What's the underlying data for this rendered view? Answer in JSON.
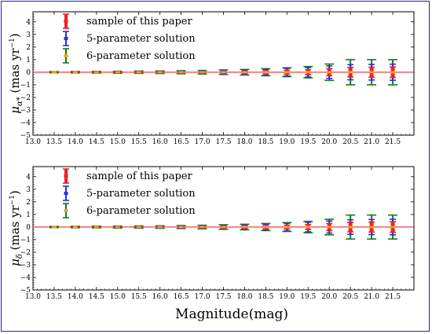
{
  "figure": {
    "xlabel": "Magnitude(mag)",
    "frame_color": "#2020d0"
  },
  "chart_data": [
    {
      "type": "errorbar",
      "ylabel": "μα* (mas yr⁻¹)",
      "ylabel_parts": {
        "symbol": "μ",
        "subscript": "α*",
        "unit": "(mas yr",
        "exponent": "−1",
        "close": ")"
      },
      "xlim": [
        13.0,
        22.0
      ],
      "ylim": [
        -5,
        4.8
      ],
      "x_ticks": [
        13.0,
        13.5,
        14.0,
        14.5,
        15.0,
        15.5,
        16.0,
        16.5,
        17.0,
        17.5,
        18.0,
        18.5,
        19.0,
        19.5,
        20.0,
        20.5,
        21.0,
        21.5
      ],
      "x_tick_labels": [
        "13.0",
        "13.5",
        "14.0",
        "14.5",
        "15.0",
        "15.5",
        "16.0",
        "16.5",
        "17.0",
        "17.5",
        "18.0",
        "18.5",
        "19.0",
        "19.5",
        "20.0",
        "20.5",
        "21.0",
        "21.5"
      ],
      "y_ticks": [
        -5,
        -4,
        -3,
        -2,
        -1,
        0,
        1,
        2,
        3,
        4
      ],
      "y_tick_labels": [
        "−5",
        "−4",
        "−3",
        "−2",
        "−1",
        "0",
        "1",
        "2",
        "3",
        "4"
      ],
      "reference_line": {
        "y": 0,
        "color": "#e8413a"
      },
      "legend_position": "top-left",
      "x": [
        13.5,
        14.0,
        14.5,
        15.0,
        15.5,
        16.0,
        16.5,
        17.0,
        17.5,
        18.0,
        18.5,
        19.0,
        19.5,
        20.0,
        20.5,
        21.0,
        21.5
      ],
      "series": [
        {
          "name": "sample of this paper",
          "color": "#ee2222",
          "marker_color": "#ee2222",
          "values": [
            0,
            0,
            0,
            0,
            0,
            0,
            0,
            0,
            0,
            0,
            0,
            0,
            0,
            0,
            0,
            0,
            0
          ],
          "errors": [
            0.02,
            0.03,
            0.03,
            0.03,
            0.04,
            0.04,
            0.05,
            0.06,
            0.08,
            0.1,
            0.12,
            0.15,
            0.2,
            0.28,
            0.38,
            0.4,
            0.42
          ]
        },
        {
          "name": "5-parameter solution",
          "color": "#2233dd",
          "marker_color": "#2233dd",
          "values": [
            0,
            0,
            0,
            0,
            0,
            0,
            0,
            0,
            0,
            0,
            0,
            0,
            0,
            0,
            0,
            0,
            0
          ],
          "errors": [
            0.03,
            0.04,
            0.05,
            0.06,
            0.07,
            0.08,
            0.09,
            0.11,
            0.14,
            0.18,
            0.23,
            0.3,
            0.38,
            0.5,
            0.6,
            0.62,
            0.64
          ]
        },
        {
          "name": "6-parameter solution",
          "color": "#1a7a1a",
          "marker_color": "#f0a020",
          "values": [
            0,
            0,
            0,
            0,
            0,
            0,
            0,
            0,
            0,
            0,
            0,
            0,
            0,
            0,
            0,
            0,
            0
          ],
          "errors": [
            0.05,
            0.06,
            0.07,
            0.08,
            0.09,
            0.1,
            0.12,
            0.14,
            0.18,
            0.22,
            0.28,
            0.35,
            0.45,
            0.65,
            1.0,
            1.0,
            1.0
          ]
        }
      ]
    },
    {
      "type": "errorbar",
      "ylabel": "μδ (mas yr⁻¹)",
      "ylabel_parts": {
        "symbol": "μ",
        "subscript": "δ",
        "unit": "(mas yr",
        "exponent": "−1",
        "close": ")"
      },
      "xlim": [
        13.0,
        22.0
      ],
      "ylim": [
        -5,
        4.8
      ],
      "x_ticks": [
        13.0,
        13.5,
        14.0,
        14.5,
        15.0,
        15.5,
        16.0,
        16.5,
        17.0,
        17.5,
        18.0,
        18.5,
        19.0,
        19.5,
        20.0,
        20.5,
        21.0,
        21.5
      ],
      "x_tick_labels": [
        "13.0",
        "13.5",
        "14.0",
        "14.5",
        "15.0",
        "15.5",
        "16.0",
        "16.5",
        "17.0",
        "17.5",
        "18.0",
        "18.5",
        "19.0",
        "19.5",
        "20.0",
        "20.5",
        "21.0",
        "21.5"
      ],
      "y_ticks": [
        -5,
        -4,
        -3,
        -2,
        -1,
        0,
        1,
        2,
        3,
        4
      ],
      "y_tick_labels": [
        "−5",
        "−4",
        "−3",
        "−2",
        "−1",
        "0",
        "1",
        "2",
        "3",
        "4"
      ],
      "reference_line": {
        "y": 0,
        "color": "#e8413a"
      },
      "legend_position": "top-left",
      "x": [
        13.5,
        14.0,
        14.5,
        15.0,
        15.5,
        16.0,
        16.5,
        17.0,
        17.5,
        18.0,
        18.5,
        19.0,
        19.5,
        20.0,
        20.5,
        21.0,
        21.5
      ],
      "series": [
        {
          "name": "sample of this paper",
          "color": "#ee2222",
          "marker_color": "#ee2222",
          "values": [
            0,
            0,
            0,
            0,
            0,
            0,
            0,
            0,
            0,
            0,
            0,
            0,
            0,
            0,
            0,
            0,
            0
          ],
          "errors": [
            0.02,
            0.03,
            0.03,
            0.03,
            0.04,
            0.04,
            0.05,
            0.06,
            0.08,
            0.1,
            0.12,
            0.15,
            0.2,
            0.28,
            0.38,
            0.4,
            0.42
          ]
        },
        {
          "name": "5-parameter solution",
          "color": "#2233dd",
          "marker_color": "#2233dd",
          "values": [
            0,
            0,
            0,
            0,
            0,
            0,
            0,
            0,
            0,
            0,
            0,
            0,
            0,
            0,
            0,
            0,
            0
          ],
          "errors": [
            0.03,
            0.04,
            0.05,
            0.06,
            0.07,
            0.08,
            0.09,
            0.11,
            0.14,
            0.18,
            0.23,
            0.3,
            0.38,
            0.48,
            0.58,
            0.6,
            0.62
          ]
        },
        {
          "name": "6-parameter solution",
          "color": "#1a7a1a",
          "marker_color": "#f0a020",
          "values": [
            0,
            0,
            0,
            0,
            0,
            0,
            0,
            0,
            0,
            0,
            0,
            0,
            0,
            0,
            0,
            0,
            0
          ],
          "errors": [
            0.05,
            0.06,
            0.07,
            0.08,
            0.09,
            0.1,
            0.12,
            0.14,
            0.18,
            0.22,
            0.28,
            0.35,
            0.45,
            0.62,
            0.95,
            0.95,
            0.95
          ]
        }
      ]
    }
  ]
}
